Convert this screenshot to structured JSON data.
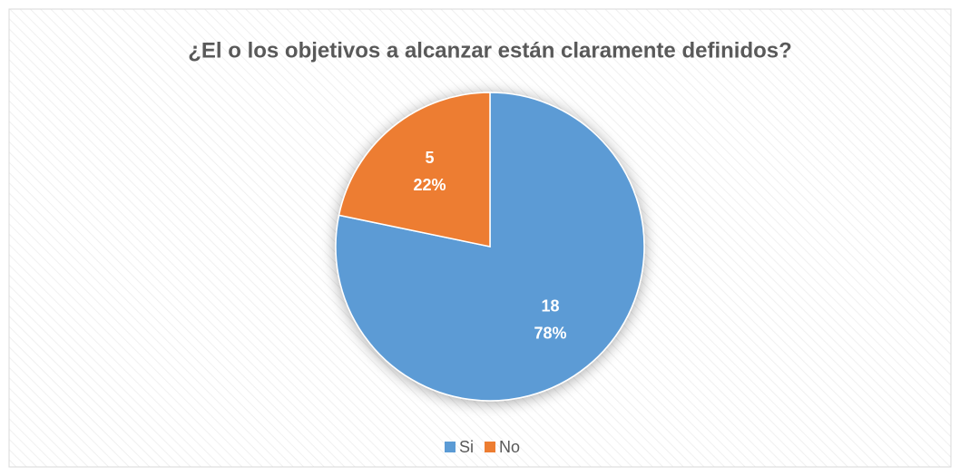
{
  "chart_data": {
    "type": "pie",
    "title": "¿El o los objetivos a alcanzar están claramente definidos?",
    "categories": [
      "Si",
      "No"
    ],
    "values": [
      18,
      5
    ],
    "percent_labels": [
      "78%",
      "22%"
    ],
    "colors": [
      "#5b9bd5",
      "#ed7d31"
    ],
    "legend": "bottom"
  }
}
